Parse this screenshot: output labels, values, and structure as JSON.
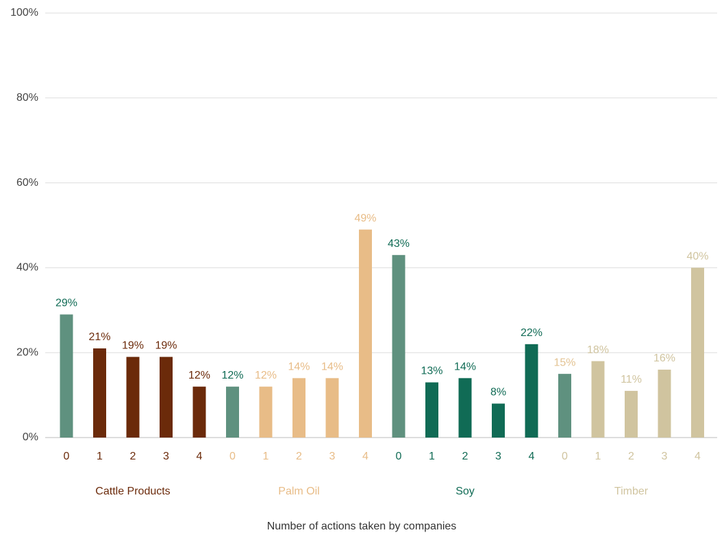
{
  "chart_data": {
    "type": "bar",
    "categories": [
      "0",
      "1",
      "2",
      "3",
      "4"
    ],
    "first_color": "#5f917f",
    "series": [
      {
        "name": "Cattle Products",
        "color": "#6b2a0a",
        "values": [
          29,
          21,
          19,
          19,
          12
        ],
        "value_labels": [
          "29%",
          "21%",
          "19%",
          "19%",
          "12%"
        ],
        "label_colors": [
          "#106b55",
          "#6b2a0a",
          "#6b2a0a",
          "#6b2a0a",
          "#6b2a0a"
        ]
      },
      {
        "name": "Palm Oil",
        "color": "#e8bc87",
        "values": [
          12,
          12,
          14,
          14,
          49
        ],
        "value_labels": [
          "12%",
          "12%",
          "14%",
          "14%",
          "49%"
        ],
        "label_colors": [
          "#106b55",
          "#e8bc87",
          "#e8bc87",
          "#e8bc87",
          "#e8bc87"
        ]
      },
      {
        "name": "Soy",
        "color": "#106b55",
        "values": [
          43,
          13,
          14,
          8,
          22
        ],
        "value_labels": [
          "43%",
          "13%",
          "14%",
          "8%",
          "22%"
        ],
        "label_colors": [
          "#106b55",
          "#106b55",
          "#106b55",
          "#106b55",
          "#106b55"
        ]
      },
      {
        "name": "Timber",
        "color": "#d0c49f",
        "values": [
          15,
          18,
          11,
          16,
          40
        ],
        "value_labels": [
          "15%",
          "18%",
          "11%",
          "16%",
          "40%"
        ],
        "label_colors": [
          "#e3c393",
          "#d0c49f",
          "#d0c49f",
          "#d0c49f",
          "#d0c49f"
        ]
      }
    ],
    "x_label": "Number of actions taken by companies",
    "ylim": [
      0,
      100
    ],
    "yticks": [
      {
        "value": 0,
        "label": "0%"
      },
      {
        "value": 20,
        "label": "20%"
      },
      {
        "value": 40,
        "label": "40%"
      },
      {
        "value": 60,
        "label": "60%"
      },
      {
        "value": 80,
        "label": "80%"
      },
      {
        "value": 100,
        "label": "100%"
      }
    ],
    "grid": true
  }
}
